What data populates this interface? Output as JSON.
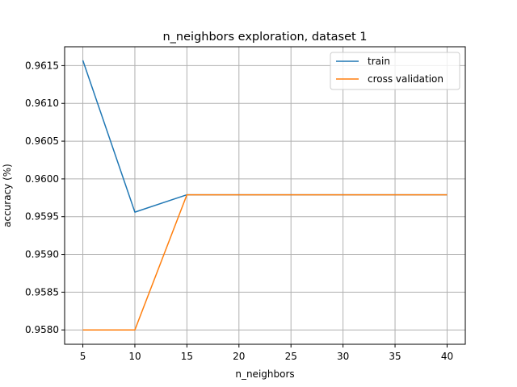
{
  "chart_data": {
    "type": "line",
    "title": "n_neighbors exploration, dataset 1",
    "xlabel": "n_neighbors",
    "ylabel": "accuracy (%)",
    "x": [
      5,
      10,
      15,
      20,
      25,
      30,
      35,
      40
    ],
    "xticks": [
      "5",
      "10",
      "15",
      "20",
      "25",
      "30",
      "35",
      "40"
    ],
    "yticks": [
      "0.9580",
      "0.9585",
      "0.9590",
      "0.9595",
      "0.9600",
      "0.9605",
      "0.9610",
      "0.9615"
    ],
    "xlim": [
      3.25,
      41.75
    ],
    "ylim": [
      0.95781,
      0.96175
    ],
    "grid": true,
    "legend_position": "top-right",
    "series": [
      {
        "name": "train",
        "color": "#1f77b4",
        "values": [
          0.96157,
          0.95956,
          0.95979,
          0.95979,
          0.95979,
          0.95979,
          0.95979,
          0.95979
        ]
      },
      {
        "name": "cross validation",
        "color": "#ff7f0e",
        "values": [
          0.958,
          0.958,
          0.95979,
          0.95979,
          0.95979,
          0.95979,
          0.95979,
          0.95979
        ]
      }
    ]
  }
}
